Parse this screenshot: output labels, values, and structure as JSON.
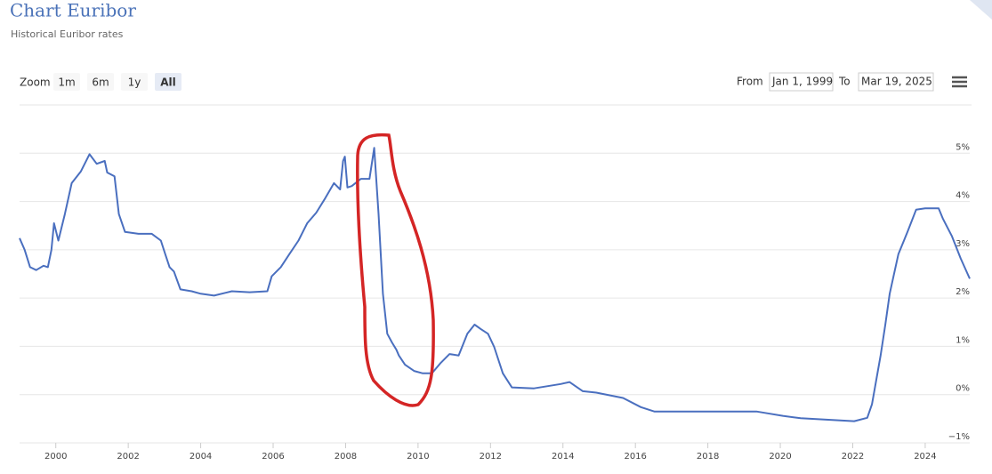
{
  "ui": {
    "zoom": "Zoom",
    "buttons": [
      "1m",
      "6m",
      "1y",
      "All"
    ],
    "from": "From",
    "from_date": "Jan 1, 1999",
    "to": "To",
    "to_date": "Mar 19, 2025"
  },
  "chart_data": {
    "type": "line",
    "title": "Chart Euribor",
    "subtitle": "Historical Euribor rates",
    "x": [
      1999.0,
      1999.14,
      1999.29,
      1999.46,
      1999.66,
      1999.78,
      1999.88,
      1999.95,
      2000.07,
      2000.25,
      2000.44,
      2000.69,
      2000.93,
      2001.13,
      2001.35,
      2001.42,
      2001.62,
      2001.74,
      2001.91,
      2002.28,
      2002.65,
      2002.9,
      2003.02,
      2003.14,
      2003.26,
      2003.44,
      2003.75,
      2004.0,
      2004.37,
      2004.86,
      2005.35,
      2005.84,
      2005.96,
      2006.21,
      2006.45,
      2006.7,
      2006.94,
      2007.19,
      2007.44,
      2007.68,
      2007.85,
      2007.93,
      2007.98,
      2008.05,
      2008.17,
      2008.42,
      2008.66,
      2008.79,
      2008.91,
      2009.03,
      2009.15,
      2009.28,
      2009.4,
      2009.47,
      2009.64,
      2009.89,
      2010.13,
      2010.38,
      2010.63,
      2010.87,
      2011.12,
      2011.36,
      2011.56,
      2011.73,
      2011.93,
      2012.1,
      2012.34,
      2012.59,
      2013.2,
      2013.94,
      2014.18,
      2014.55,
      2014.92,
      2015.66,
      2016.15,
      2016.52,
      2018.11,
      2019.34,
      2019.58,
      2020.07,
      2020.56,
      2022.04,
      2022.4,
      2022.53,
      2022.77,
      2022.9,
      2023.02,
      2023.26,
      2023.51,
      2023.75,
      2024.0,
      2024.37,
      2024.49,
      2024.74,
      2024.98,
      2025.23
    ],
    "series": [
      {
        "name": "Euribor",
        "color": "#4a6fbf",
        "values": [
          3.24,
          3.0,
          2.64,
          2.58,
          2.67,
          2.64,
          3.0,
          3.55,
          3.19,
          3.74,
          4.38,
          4.62,
          4.98,
          4.78,
          4.84,
          4.6,
          4.52,
          3.74,
          3.37,
          3.33,
          3.33,
          3.19,
          2.91,
          2.64,
          2.55,
          2.18,
          2.14,
          2.09,
          2.05,
          2.14,
          2.12,
          2.14,
          2.45,
          2.64,
          2.91,
          3.19,
          3.55,
          3.77,
          4.07,
          4.38,
          4.25,
          4.84,
          4.93,
          4.29,
          4.32,
          4.47,
          4.47,
          5.11,
          3.74,
          2.09,
          1.26,
          1.08,
          0.93,
          0.81,
          0.62,
          0.49,
          0.44,
          0.44,
          0.66,
          0.84,
          0.81,
          1.26,
          1.45,
          1.36,
          1.26,
          0.99,
          0.44,
          0.15,
          0.13,
          0.22,
          0.26,
          0.07,
          0.04,
          -0.07,
          -0.26,
          -0.35,
          -0.35,
          -0.35,
          -0.38,
          -0.44,
          -0.49,
          -0.55,
          -0.48,
          -0.2,
          0.81,
          1.45,
          2.09,
          2.91,
          3.37,
          3.83,
          3.86,
          3.86,
          3.64,
          3.28,
          2.82,
          2.4
        ]
      }
    ],
    "xlim": [
      1999,
      2025.23
    ],
    "xticks": [
      2000,
      2002,
      2004,
      2006,
      2008,
      2010,
      2012,
      2014,
      2016,
      2018,
      2020,
      2022,
      2024
    ],
    "ylim": [
      -1,
      6
    ],
    "yticks": [
      {
        "value": -1,
        "label": "−1%"
      },
      {
        "value": 0,
        "label": "0%"
      },
      {
        "value": 1,
        "label": "1%"
      },
      {
        "value": 2,
        "label": "2%"
      },
      {
        "value": 3,
        "label": "3%"
      },
      {
        "value": 4,
        "label": "4%"
      },
      {
        "value": 5,
        "label": "5%"
      }
    ],
    "grid": true
  }
}
